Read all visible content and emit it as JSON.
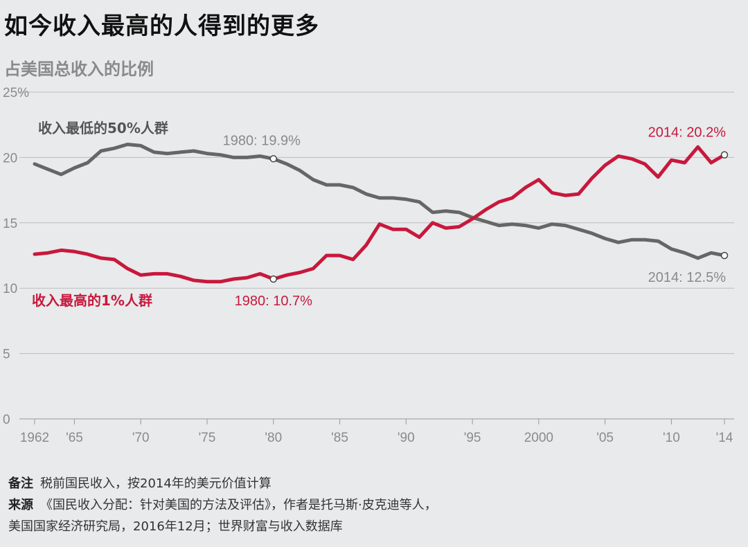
{
  "title": "如今收入最高的人得到的更多",
  "subtitle": "占美国总收入的比例",
  "chart_data": {
    "type": "line",
    "x": [
      1962,
      1963,
      1964,
      1965,
      1966,
      1967,
      1968,
      1969,
      1970,
      1971,
      1972,
      1973,
      1974,
      1975,
      1976,
      1977,
      1978,
      1979,
      1980,
      1981,
      1982,
      1983,
      1984,
      1985,
      1986,
      1987,
      1988,
      1989,
      1990,
      1991,
      1992,
      1993,
      1994,
      1995,
      1996,
      1997,
      1998,
      1999,
      2000,
      2001,
      2002,
      2003,
      2004,
      2005,
      2006,
      2007,
      2008,
      2009,
      2010,
      2011,
      2012,
      2013,
      2014
    ],
    "xticks": [
      1962,
      1965,
      1970,
      1975,
      1980,
      1985,
      1990,
      1995,
      2000,
      2005,
      2010,
      2014
    ],
    "xtick_labels": [
      "1962",
      "'65",
      "'70",
      "'75",
      "'80",
      "'85",
      "'90",
      "'95",
      "2000",
      "'05",
      "'10",
      "'14"
    ],
    "yticks": [
      0,
      5,
      10,
      15,
      20,
      25
    ],
    "ytick_labels": [
      "0",
      "5",
      "10",
      "15",
      "20",
      "25%"
    ],
    "ylim": [
      0,
      25
    ],
    "xlim": [
      1962,
      2014
    ],
    "grid": true,
    "series": [
      {
        "name": "收入最低的50%人群",
        "color": "#666666",
        "values": [
          19.5,
          19.1,
          18.7,
          19.2,
          19.6,
          20.5,
          20.7,
          21.0,
          20.9,
          20.4,
          20.3,
          20.4,
          20.5,
          20.3,
          20.2,
          20.0,
          20.0,
          20.1,
          19.9,
          19.5,
          19.0,
          18.3,
          17.9,
          17.9,
          17.7,
          17.2,
          16.9,
          16.9,
          16.8,
          16.6,
          15.8,
          15.9,
          15.8,
          15.4,
          15.1,
          14.8,
          14.9,
          14.8,
          14.6,
          14.9,
          14.8,
          14.5,
          14.2,
          13.8,
          13.5,
          13.7,
          13.7,
          13.6,
          13.0,
          12.7,
          12.3,
          12.7,
          12.5
        ]
      },
      {
        "name": "收入最高的1%人群",
        "color": "#c8183c",
        "values": [
          12.6,
          12.7,
          12.9,
          12.8,
          12.6,
          12.3,
          12.2,
          11.5,
          11.0,
          11.1,
          11.1,
          10.9,
          10.6,
          10.5,
          10.5,
          10.7,
          10.8,
          11.1,
          10.7,
          11.0,
          11.2,
          11.5,
          12.5,
          12.5,
          12.2,
          13.3,
          14.9,
          14.5,
          14.5,
          13.9,
          15.0,
          14.6,
          14.7,
          15.3,
          16.0,
          16.6,
          16.9,
          17.7,
          18.3,
          17.3,
          17.1,
          17.2,
          18.4,
          19.4,
          20.1,
          19.9,
          19.5,
          18.5,
          19.8,
          19.6,
          20.8,
          19.6,
          20.2
        ]
      }
    ],
    "annotations": [
      {
        "text": "1980: 19.9%",
        "color": "#8a8a8a",
        "x": 1980,
        "y": 19.9
      },
      {
        "text": "1980: 10.7%",
        "color": "#c8183c",
        "x": 1980,
        "y": 10.7
      },
      {
        "text": "2014: 20.2%",
        "color": "#c8183c",
        "x": 2014,
        "y": 20.2
      },
      {
        "text": "2014: 12.5%",
        "color": "#8a8a8a",
        "x": 2014,
        "y": 12.5
      }
    ]
  },
  "notes": {
    "note_label": "备注",
    "note_text": "税前国民收入，按2014年的美元价值计算",
    "source_label": "来源",
    "source_line1": "《国民收入分配：针对美国的方法及评估》，作者是托马斯·皮克迪等人，",
    "source_line2": "美国国家经济研究局，2016年12月；世界财富与收入数据库"
  }
}
